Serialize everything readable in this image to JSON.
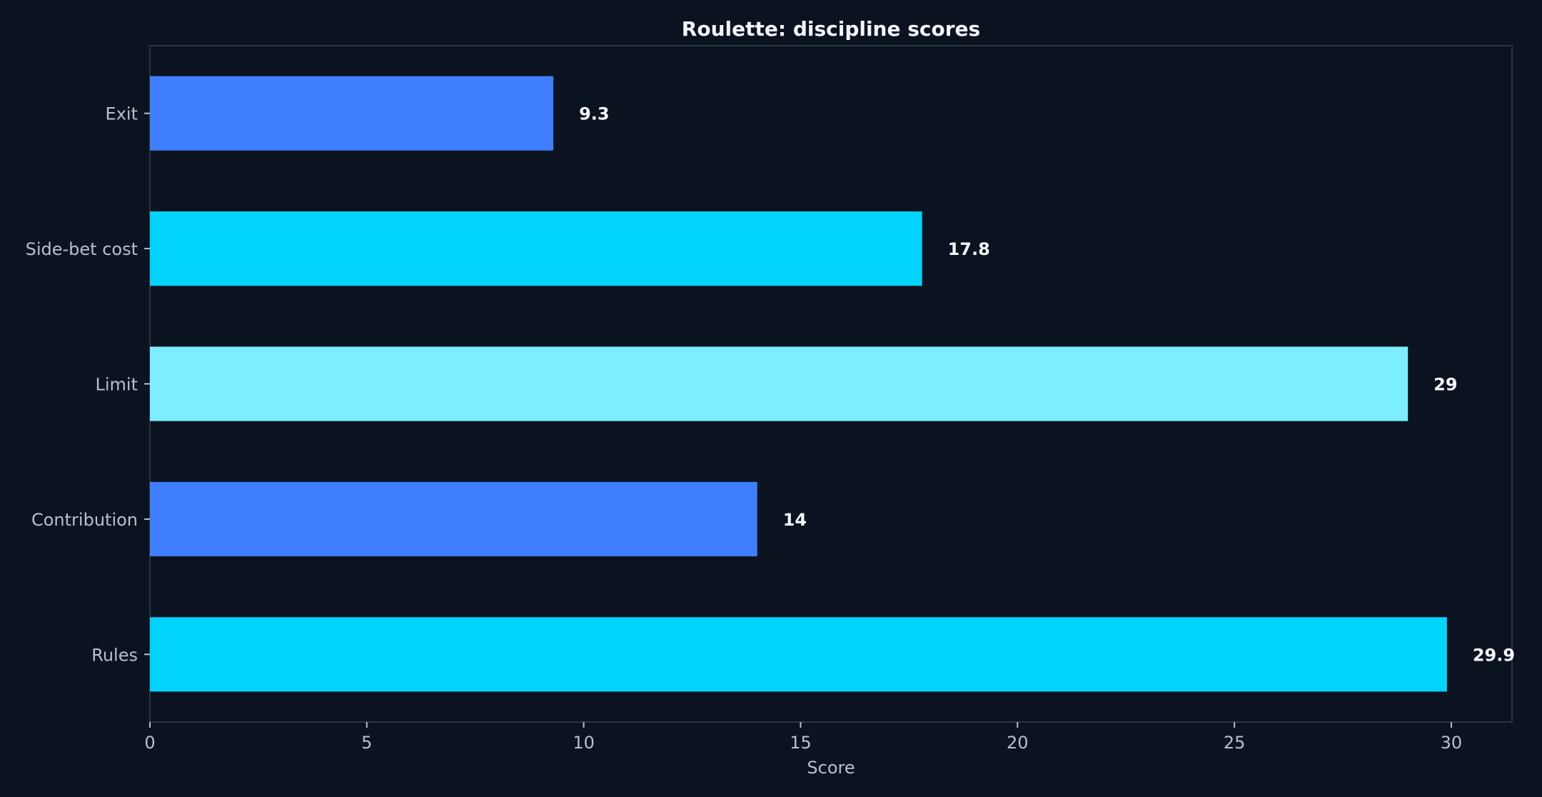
{
  "chart_data": {
    "type": "bar",
    "orientation": "horizontal",
    "title": "Roulette: discipline scores",
    "xlabel": "Score",
    "ylabel": "",
    "categories": [
      "Exit",
      "Side-bet cost",
      "Limit",
      "Contribution",
      "Rules"
    ],
    "values": [
      9.3,
      17.8,
      29,
      14,
      29.9
    ],
    "value_labels": [
      "9.3",
      "17.8",
      "29",
      "14",
      "29.9"
    ],
    "bar_colors": [
      "#3f7fff",
      "#00d4ff",
      "#7ceeff",
      "#3f7fff",
      "#00d4ff"
    ],
    "xlim": [
      0,
      31.4
    ],
    "xticks": [
      0,
      5,
      10,
      15,
      20,
      25,
      30
    ],
    "grid": false,
    "legend": "none"
  },
  "colors": {
    "background": "#0b1220",
    "frame": "#2a3344",
    "text": "#b8c0cc",
    "title": "#f3f6fa"
  }
}
